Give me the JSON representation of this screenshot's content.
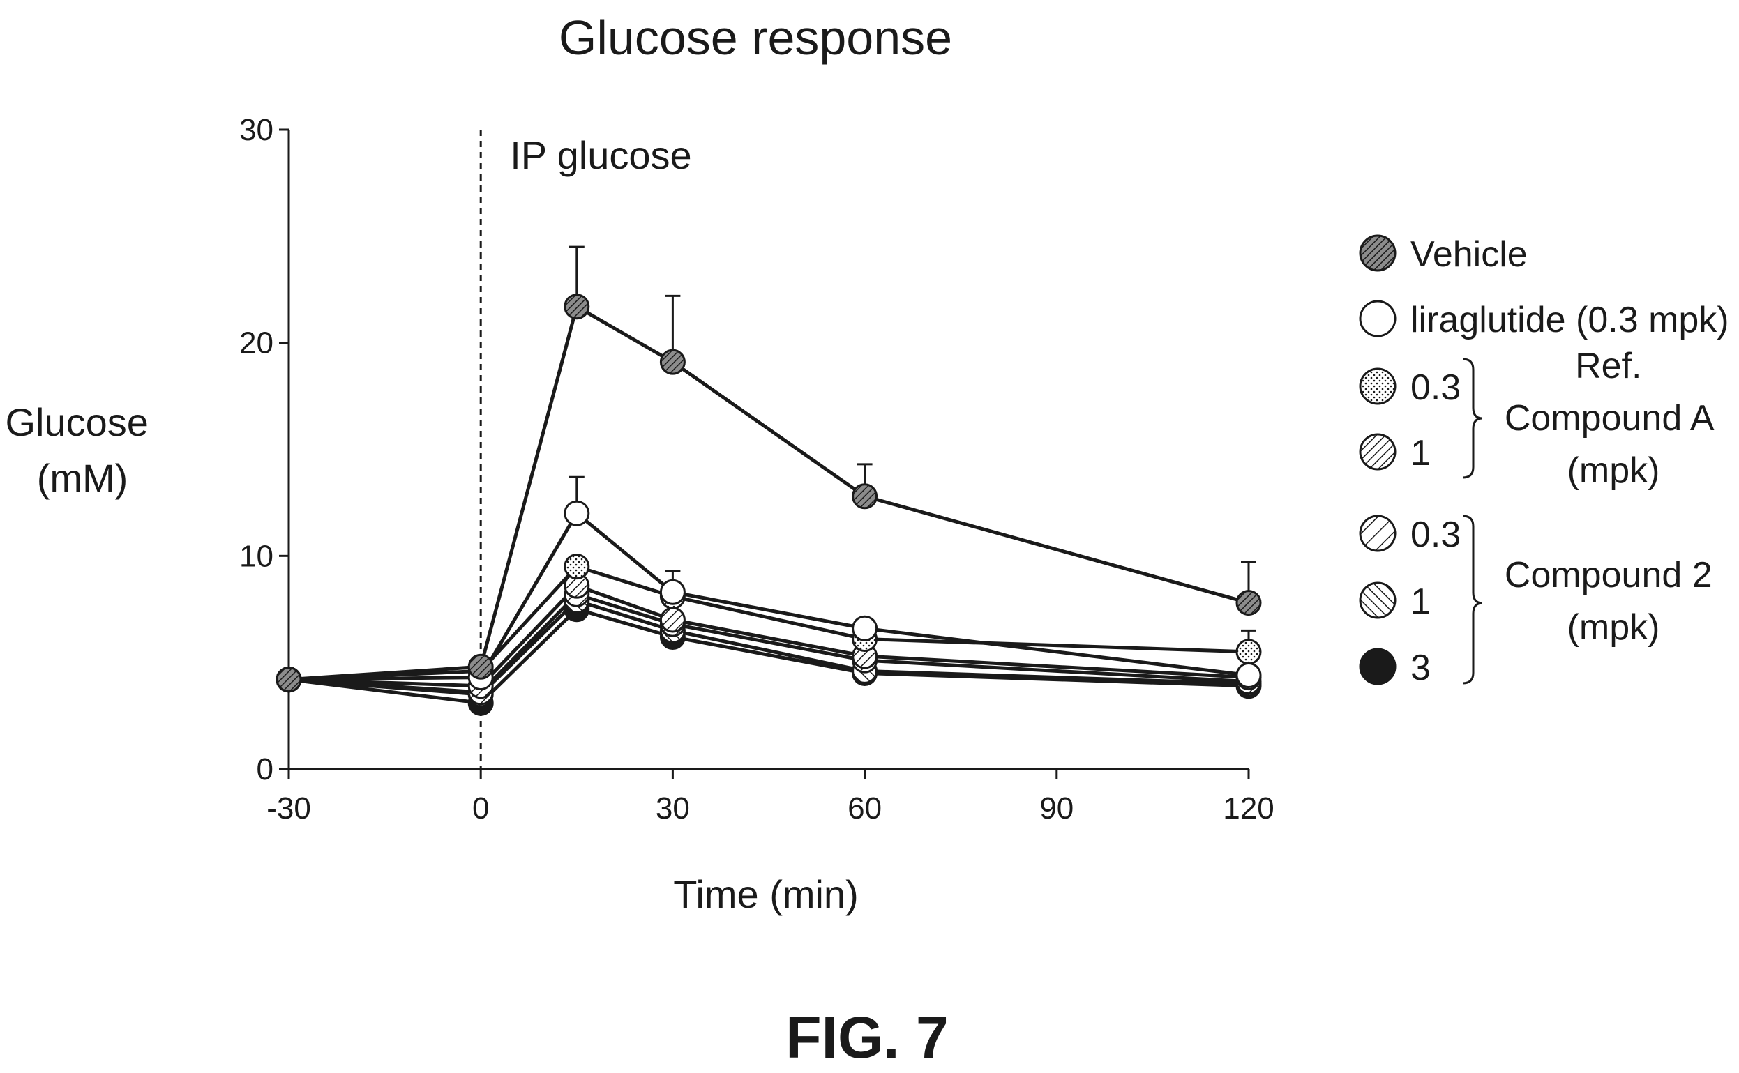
{
  "chart_data": {
    "type": "line",
    "title": "Glucose response",
    "xlabel": "Time (min)",
    "ylabel": [
      "Glucose",
      "(mM)"
    ],
    "xlim": [
      -30,
      120
    ],
    "ylim": [
      0,
      30
    ],
    "xticks": [
      -30,
      0,
      30,
      60,
      90,
      120
    ],
    "yticks": [
      0,
      10,
      20,
      30
    ],
    "grid": false,
    "annotation": {
      "text": "IP glucose",
      "x": 0
    },
    "x": [
      -30,
      0,
      15,
      30,
      60,
      120
    ],
    "series": [
      {
        "name": "Vehicle",
        "pattern": "dense-hatch",
        "values": [
          4.2,
          4.8,
          21.7,
          19.1,
          12.8,
          7.8
        ],
        "error": [
          0,
          0,
          2.8,
          3.1,
          1.5,
          1.9
        ]
      },
      {
        "name": "liraglutide (0.3 mpk)",
        "pattern": "open",
        "values": [
          4.2,
          4.3,
          12.0,
          8.3,
          6.6,
          4.4
        ],
        "error": [
          0,
          0,
          1.7,
          1.0,
          0,
          0
        ]
      },
      {
        "name": "0.3",
        "group": "Ref. Compound A (mpk)",
        "pattern": "dotted",
        "values": [
          4.2,
          4.6,
          9.5,
          8.1,
          6.1,
          5.5
        ],
        "error": [
          0,
          0,
          0,
          0,
          0,
          1.0
        ]
      },
      {
        "name": "1",
        "group": "Ref. Compound A (mpk)",
        "pattern": "fine-hatch",
        "values": [
          4.2,
          3.9,
          8.6,
          7.0,
          5.3,
          4.3
        ],
        "error": [
          0,
          0,
          0,
          0,
          0,
          0
        ]
      },
      {
        "name": "0.3",
        "group": "Compound 2 (mpk)",
        "pattern": "wide-hatch",
        "values": [
          4.2,
          3.6,
          8.2,
          6.8,
          5.1,
          4.1
        ],
        "error": [
          0,
          0,
          0,
          0,
          0,
          0
        ]
      },
      {
        "name": "1",
        "group": "Compound 2 (mpk)",
        "pattern": "back-hatch",
        "values": [
          4.2,
          3.5,
          7.9,
          6.5,
          4.6,
          4.0
        ],
        "error": [
          0,
          0,
          0,
          0,
          0,
          0
        ]
      },
      {
        "name": "3",
        "group": "Compound 2 (mpk)",
        "pattern": "solid",
        "values": [
          4.2,
          3.1,
          7.5,
          6.2,
          4.5,
          3.9
        ],
        "error": [
          0,
          0,
          0,
          0,
          0,
          0
        ]
      }
    ]
  },
  "legend": {
    "items": [
      "Vehicle",
      "liraglutide (0.3 mpk)",
      "0.3",
      "1",
      "0.3",
      "1",
      "3"
    ],
    "group_a": [
      "Ref.",
      "Compound A",
      "(mpk)"
    ],
    "group_b": [
      "Compound 2",
      "(mpk)"
    ]
  },
  "figure_label": "FIG. 7",
  "colors": {
    "ink": "#1a1a1a",
    "background": "#ffffff"
  }
}
